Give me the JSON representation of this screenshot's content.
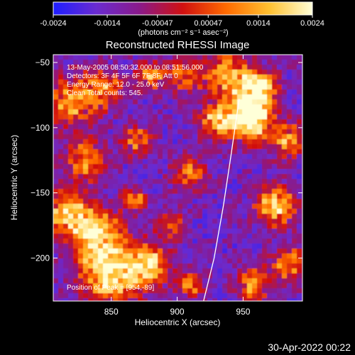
{
  "colorbar": {
    "tick_labels": [
      "-0.0024",
      "-0.0014",
      "-0.00047",
      "0.00047",
      "0.0014",
      "0.0024"
    ],
    "tick_values": [
      -0.0024,
      -0.0014,
      -0.00047,
      0.00047,
      0.0014,
      0.0024
    ],
    "range": [
      -0.0024,
      0.0024
    ],
    "unit_label": "(photons cm⁻² s⁻¹ asec⁻²)",
    "colors": [
      "#1e1eff",
      "#6a2bd0",
      "#8a1a8a",
      "#d01010",
      "#ff6a00",
      "#ffc030",
      "#ffffd8"
    ]
  },
  "chart_data": {
    "type": "heatmap",
    "title": "Reconstructed RHESSI Image",
    "xlabel": "Heliocentric X (arcsec)",
    "ylabel": "Heliocentric Y (arcsec)",
    "xlim": [
      806,
      995
    ],
    "ylim": [
      -233,
      -44
    ],
    "x_ticks": [
      850,
      900,
      950
    ],
    "x_tick_labels": [
      "850",
      "900",
      "950"
    ],
    "y_ticks": [
      -50,
      -100,
      -150,
      -200
    ],
    "y_tick_labels": [
      "−50",
      "−100",
      "−150",
      "−200"
    ],
    "peak": [
      954,
      -89
    ],
    "limb_curve": [
      [
        920,
        -233
      ],
      [
        928,
        -200
      ],
      [
        935,
        -160
      ],
      [
        941,
        -120
      ],
      [
        945,
        -92
      ],
      [
        947,
        -78
      ]
    ],
    "annotations": [
      "13-May-2005 08:50:32.000 to 08:51:56.000",
      "Detectors: 3F 4F 5F 6F 7F 8F, Att 0",
      "Energy Range: 12.0 - 25.0 keV",
      "Clean    Total counts: 545.",
      "Position of Peak = [954,-89]"
    ]
  },
  "footer": {
    "timestamp": "30-Apr-2022 00:22"
  }
}
